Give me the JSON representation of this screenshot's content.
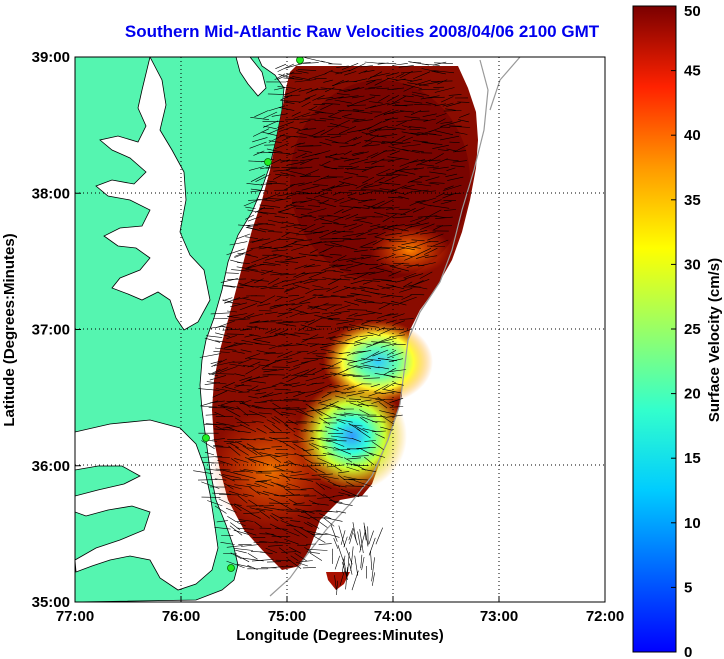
{
  "title": "Southern Mid-Atlantic Raw Velocities 2008/04/06 2100 GMT",
  "x_axis": {
    "label": "Longitude (Degrees:Minutes)",
    "ticks": [
      {
        "value": -77,
        "label": "77:00"
      },
      {
        "value": -76,
        "label": "76:00"
      },
      {
        "value": -75,
        "label": "75:00"
      },
      {
        "value": -74,
        "label": "74:00"
      },
      {
        "value": -73,
        "label": "73:00"
      },
      {
        "value": -72,
        "label": "72:00"
      }
    ]
  },
  "y_axis": {
    "label": "Latitude (Degrees:Minutes)",
    "ticks": [
      {
        "value": 39,
        "label": "39:00"
      },
      {
        "value": 38,
        "label": "38:00"
      },
      {
        "value": 37,
        "label": "37:00"
      },
      {
        "value": 36,
        "label": "36:00"
      },
      {
        "value": 35,
        "label": "35:00"
      }
    ]
  },
  "colorbar": {
    "label": "Surface Velocity (cm/s)",
    "ticks": [
      "50",
      "45",
      "40",
      "35",
      "30",
      "25",
      "20",
      "15",
      "10",
      "5",
      "0"
    ],
    "min": 0,
    "max": 50
  },
  "colors": {
    "land": "#55f5b0",
    "water": "#ffffff",
    "title": "#0000ee",
    "stations": "#22ee22"
  }
}
